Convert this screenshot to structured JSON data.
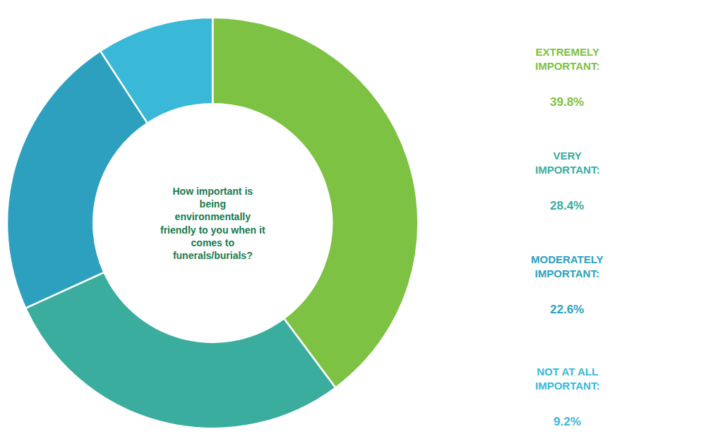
{
  "chart_data": {
    "type": "pie",
    "categories": [
      "EXTREMELY\nIMPORTANT:",
      "VERY\nIMPORTANT:",
      "MODERATELY\nIMPORTANT:",
      "NOT AT ALL\nIMPORTANT:"
    ],
    "values": [
      39.8,
      28.4,
      22.6,
      9.2
    ],
    "value_labels": [
      "39.8%",
      "28.4%",
      "22.6%",
      "9.2%"
    ],
    "colors": [
      "#7dc242",
      "#3aad9e",
      "#2da0c0",
      "#39b8d8"
    ],
    "annotations": [
      {
        "text": "How important is\nbeing\nenvironmentally\nfriendly to you when it\ncomes to\nfunerals/burials?"
      }
    ]
  }
}
